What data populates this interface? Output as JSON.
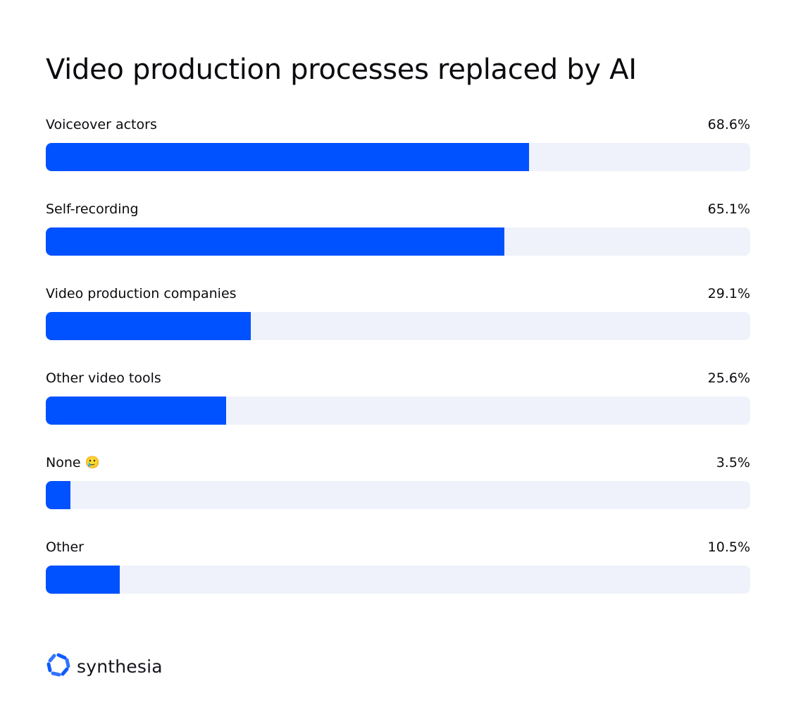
{
  "title": "Video production processes replaced by AI",
  "brand": {
    "name": "synthesia",
    "icon": "synthesia-logo-icon",
    "color": "#0051ff"
  },
  "colors": {
    "bar": "#0051ff",
    "track": "#eff2fa",
    "text": "#0b0b0f"
  },
  "rows": [
    {
      "label": "Voiceover actors",
      "value_label": "68.6%",
      "value": 68.6,
      "emoji": ""
    },
    {
      "label": "Self-recording",
      "value_label": "65.1%",
      "value": 65.1,
      "emoji": ""
    },
    {
      "label": "Video production companies",
      "value_label": "29.1%",
      "value": 29.1,
      "emoji": ""
    },
    {
      "label": "Other video tools",
      "value_label": "25.6%",
      "value": 25.6,
      "emoji": ""
    },
    {
      "label": "None",
      "value_label": "3.5%",
      "value": 3.5,
      "emoji": "🥲"
    },
    {
      "label": "Other",
      "value_label": "10.5%",
      "value": 10.5,
      "emoji": ""
    }
  ],
  "chart_data": {
    "type": "bar",
    "orientation": "horizontal",
    "title": "Video production processes replaced by AI",
    "categories": [
      "Voiceover actors",
      "Self-recording",
      "Video production companies",
      "Other video tools",
      "None",
      "Other"
    ],
    "values": [
      68.6,
      65.1,
      29.1,
      25.6,
      3.5,
      10.5
    ],
    "unit": "%",
    "xlabel": "",
    "ylabel": "",
    "xlim": [
      0,
      100
    ],
    "grid": false,
    "legend": null,
    "annotations": [
      "🥲 emoji after 'None' label"
    ]
  }
}
